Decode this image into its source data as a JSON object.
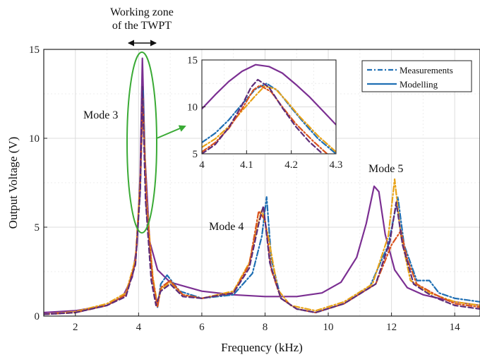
{
  "chart_data": [
    {
      "id": "main",
      "type": "line",
      "xlabel": "Frequency (kHz)",
      "ylabel": "Output Voltage (V)",
      "xlim": [
        1,
        14.8
      ],
      "ylim": [
        0,
        15
      ],
      "xticks": [
        2,
        4,
        6,
        8,
        10,
        12,
        14
      ],
      "yticks": [
        0,
        5,
        10,
        15
      ],
      "grid": true,
      "series": [
        {
          "color": "#7b2f92",
          "style": "solid",
          "points": [
            [
              1,
              0.2
            ],
            [
              2,
              0.3
            ],
            [
              3,
              0.6
            ],
            [
              3.5,
              1.1
            ],
            [
              3.8,
              2.2
            ],
            [
              3.95,
              4.0
            ],
            [
              4.05,
              8.0
            ],
            [
              4.12,
              14.5
            ],
            [
              4.2,
              9.0
            ],
            [
              4.35,
              4.2
            ],
            [
              4.6,
              2.6
            ],
            [
              5,
              1.9
            ],
            [
              6,
              1.4
            ],
            [
              7,
              1.2
            ],
            [
              8,
              1.1
            ],
            [
              9,
              1.1
            ],
            [
              9.8,
              1.3
            ],
            [
              10.4,
              1.9
            ],
            [
              10.9,
              3.3
            ],
            [
              11.2,
              5.2
            ],
            [
              11.45,
              7.3
            ],
            [
              11.6,
              7.0
            ],
            [
              11.8,
              4.6
            ],
            [
              12.1,
              2.6
            ],
            [
              12.5,
              1.6
            ],
            [
              13,
              1.2
            ],
            [
              14,
              0.8
            ],
            [
              14.8,
              0.6
            ]
          ]
        },
        {
          "color": "#1f6fb4",
          "style": "dashdot",
          "points": [
            [
              1,
              0.1
            ],
            [
              2,
              0.2
            ],
            [
              3,
              0.6
            ],
            [
              3.6,
              1.2
            ],
            [
              3.9,
              3.0
            ],
            [
              4.05,
              7.0
            ],
            [
              4.14,
              12.7
            ],
            [
              4.25,
              6.0
            ],
            [
              4.45,
              2.0
            ],
            [
              4.6,
              0.5
            ],
            [
              4.7,
              1.8
            ],
            [
              4.9,
              2.3
            ],
            [
              5.3,
              1.4
            ],
            [
              6,
              1.0
            ],
            [
              7,
              1.2
            ],
            [
              7.6,
              2.4
            ],
            [
              7.9,
              4.5
            ],
            [
              8.05,
              6.7
            ],
            [
              8.2,
              3.2
            ],
            [
              8.5,
              1.0
            ],
            [
              9,
              0.4
            ],
            [
              9.6,
              0.2
            ],
            [
              10.5,
              0.7
            ],
            [
              11.3,
              1.6
            ],
            [
              11.9,
              4.0
            ],
            [
              12.2,
              6.7
            ],
            [
              12.4,
              4.0
            ],
            [
              12.8,
              2.0
            ],
            [
              13.2,
              2.0
            ],
            [
              13.5,
              1.3
            ],
            [
              14,
              1.0
            ],
            [
              14.8,
              0.8
            ]
          ]
        },
        {
          "color": "#e8a317",
          "style": "dashdot",
          "points": [
            [
              1,
              0.1
            ],
            [
              2,
              0.25
            ],
            [
              3,
              0.7
            ],
            [
              3.6,
              1.3
            ],
            [
              3.9,
              3.2
            ],
            [
              4.05,
              7.5
            ],
            [
              4.13,
              12.2
            ],
            [
              4.25,
              6.5
            ],
            [
              4.45,
              2.2
            ],
            [
              4.6,
              0.6
            ],
            [
              4.7,
              1.5
            ],
            [
              5,
              1.9
            ],
            [
              5.4,
              1.2
            ],
            [
              6,
              1.0
            ],
            [
              7,
              1.4
            ],
            [
              7.5,
              3.0
            ],
            [
              7.75,
              5.0
            ],
            [
              7.9,
              6.0
            ],
            [
              8.1,
              4.5
            ],
            [
              8.4,
              1.5
            ],
            [
              8.8,
              0.6
            ],
            [
              9.6,
              0.3
            ],
            [
              10.5,
              0.8
            ],
            [
              11.4,
              1.8
            ],
            [
              11.9,
              4.5
            ],
            [
              12.1,
              7.7
            ],
            [
              12.3,
              4.5
            ],
            [
              12.6,
              2.0
            ],
            [
              13.2,
              1.3
            ],
            [
              14,
              0.8
            ],
            [
              14.8,
              0.6
            ]
          ]
        },
        {
          "color": "#d9531e",
          "style": "dashdot",
          "points": [
            [
              1,
              0.1
            ],
            [
              2,
              0.2
            ],
            [
              3,
              0.6
            ],
            [
              3.6,
              1.2
            ],
            [
              3.9,
              3.0
            ],
            [
              4.05,
              7.2
            ],
            [
              4.13,
              12.3
            ],
            [
              4.25,
              6.2
            ],
            [
              4.45,
              2.0
            ],
            [
              4.6,
              0.5
            ],
            [
              4.7,
              1.6
            ],
            [
              5,
              2.0
            ],
            [
              5.4,
              1.2
            ],
            [
              6,
              1.0
            ],
            [
              7,
              1.3
            ],
            [
              7.5,
              2.9
            ],
            [
              7.8,
              5.9
            ],
            [
              8.0,
              5.4
            ],
            [
              8.2,
              2.6
            ],
            [
              8.5,
              1.0
            ],
            [
              9,
              0.4
            ],
            [
              9.6,
              0.2
            ],
            [
              10.5,
              0.7
            ],
            [
              11.5,
              1.8
            ],
            [
              12.0,
              4.0
            ],
            [
              12.3,
              4.8
            ],
            [
              12.5,
              3.2
            ],
            [
              12.8,
              1.8
            ],
            [
              13.4,
              1.2
            ],
            [
              14,
              0.7
            ],
            [
              14.8,
              0.5
            ]
          ]
        },
        {
          "color": "#5e2d79",
          "style": "dashed",
          "points": [
            [
              1,
              0.1
            ],
            [
              2,
              0.2
            ],
            [
              3,
              0.6
            ],
            [
              3.6,
              1.1
            ],
            [
              3.9,
              2.9
            ],
            [
              4.05,
              7.0
            ],
            [
              4.12,
              12.9
            ],
            [
              4.22,
              6.5
            ],
            [
              4.4,
              2.0
            ],
            [
              4.55,
              0.6
            ],
            [
              4.7,
              1.4
            ],
            [
              5,
              1.8
            ],
            [
              5.4,
              1.1
            ],
            [
              6,
              1.0
            ],
            [
              7,
              1.3
            ],
            [
              7.5,
              2.7
            ],
            [
              7.8,
              5.2
            ],
            [
              7.95,
              6.2
            ],
            [
              8.15,
              3.0
            ],
            [
              8.5,
              1.0
            ],
            [
              9,
              0.4
            ],
            [
              9.6,
              0.2
            ],
            [
              10.5,
              0.7
            ],
            [
              11.5,
              1.8
            ],
            [
              11.95,
              4.2
            ],
            [
              12.15,
              6.4
            ],
            [
              12.35,
              4.0
            ],
            [
              12.7,
              1.8
            ],
            [
              13.3,
              1.1
            ],
            [
              14,
              0.6
            ],
            [
              14.8,
              0.4
            ]
          ]
        }
      ]
    },
    {
      "id": "inset",
      "type": "line",
      "xlim": [
        4,
        4.3
      ],
      "ylim": [
        5,
        15
      ],
      "xticks": [
        4,
        4.1,
        4.2,
        4.3
      ],
      "yticks": [
        5,
        10,
        15
      ],
      "grid": true,
      "series": [
        {
          "color": "#7b2f92",
          "style": "solid",
          "points": [
            [
              4.0,
              9.8
            ],
            [
              4.03,
              11.3
            ],
            [
              4.06,
              12.7
            ],
            [
              4.09,
              13.8
            ],
            [
              4.12,
              14.5
            ],
            [
              4.15,
              14.3
            ],
            [
              4.18,
              13.6
            ],
            [
              4.21,
              12.4
            ],
            [
              4.24,
              11.1
            ],
            [
              4.27,
              9.6
            ],
            [
              4.3,
              8.1
            ]
          ]
        },
        {
          "color": "#1f6fb4",
          "style": "dashdot",
          "points": [
            [
              4.0,
              6.2
            ],
            [
              4.03,
              7.2
            ],
            [
              4.06,
              8.6
            ],
            [
              4.09,
              10.3
            ],
            [
              4.12,
              11.9
            ],
            [
              4.145,
              12.5
            ],
            [
              4.17,
              11.7
            ],
            [
              4.2,
              9.9
            ],
            [
              4.23,
              8.2
            ],
            [
              4.26,
              6.6
            ],
            [
              4.3,
              5.0
            ]
          ]
        },
        {
          "color": "#e8a317",
          "style": "dashdot",
          "points": [
            [
              4.0,
              5.7
            ],
            [
              4.03,
              6.6
            ],
            [
              4.06,
              7.9
            ],
            [
              4.09,
              9.6
            ],
            [
              4.12,
              11.2
            ],
            [
              4.14,
              12.2
            ],
            [
              4.165,
              11.9
            ],
            [
              4.19,
              10.6
            ],
            [
              4.22,
              8.9
            ],
            [
              4.26,
              6.9
            ],
            [
              4.3,
              5.2
            ]
          ]
        },
        {
          "color": "#d9531e",
          "style": "dashdot",
          "points": [
            [
              4.0,
              5.2
            ],
            [
              4.03,
              6.2
            ],
            [
              4.06,
              7.7
            ],
            [
              4.09,
              9.8
            ],
            [
              4.115,
              11.8
            ],
            [
              4.13,
              12.3
            ],
            [
              4.155,
              11.6
            ],
            [
              4.18,
              10.0
            ],
            [
              4.21,
              8.2
            ],
            [
              4.25,
              6.3
            ],
            [
              4.28,
              5.0
            ]
          ]
        },
        {
          "color": "#5e2d79",
          "style": "dashed",
          "points": [
            [
              4.0,
              5.0
            ],
            [
              4.03,
              6.0
            ],
            [
              4.06,
              7.8
            ],
            [
              4.09,
              10.2
            ],
            [
              4.11,
              12.1
            ],
            [
              4.125,
              12.9
            ],
            [
              4.15,
              12.1
            ],
            [
              4.18,
              9.9
            ],
            [
              4.21,
              7.9
            ],
            [
              4.24,
              6.3
            ],
            [
              4.27,
              5.0
            ]
          ]
        }
      ],
      "legend": {
        "placement": "top-right",
        "entries": [
          {
            "label": "Measurements",
            "color": "#1f6fb4",
            "style": "dashdot"
          },
          {
            "label": "Modelling",
            "color": "#1f6fb4",
            "style": "solid"
          }
        ]
      }
    }
  ],
  "annotations": {
    "zone_line1": "Working zone",
    "zone_line2": "of the TWPT",
    "mode3": "Mode 3",
    "mode4": "Mode 4",
    "mode5": "Mode 5",
    "highlight_color": "#3aaa35"
  }
}
